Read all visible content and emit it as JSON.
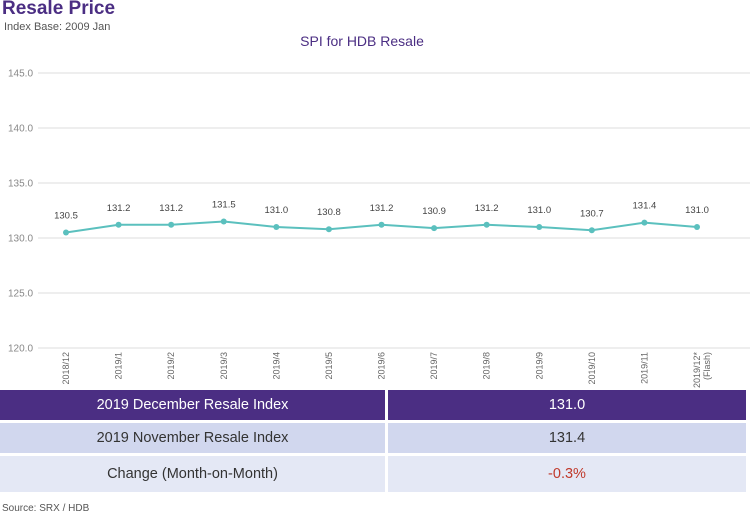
{
  "header": {
    "title": "Resale Price",
    "subtitle": "Index Base: 2009 Jan"
  },
  "chart_data": {
    "type": "line",
    "title": "SPI for HDB Resale",
    "xlabel": "",
    "ylabel": "",
    "x": [
      "2018/12",
      "2019/1",
      "2019/2",
      "2019/3",
      "2019/4",
      "2019/5",
      "2019/6",
      "2019/7",
      "2019/8",
      "2019/9",
      "2019/10",
      "2019/11",
      "2019/12*"
    ],
    "x_last_sublabel": "(Flash)",
    "series": [
      {
        "values": [
          130.5,
          131.2,
          131.2,
          131.5,
          131.0,
          130.8,
          131.2,
          130.9,
          131.2,
          131.0,
          130.7,
          131.4,
          131.0
        ],
        "labels": [
          "130.5",
          "131.2",
          "131.2",
          "131.5",
          "131.0",
          "130.8",
          "131.2",
          "130.9",
          "131.2",
          "131.0",
          "130.7",
          "131.4",
          "131.0"
        ],
        "color": "#5bc0be"
      }
    ],
    "ylim": [
      120.0,
      145.0
    ],
    "yticks": [
      "120.0",
      "125.0",
      "130.0",
      "135.0",
      "140.0",
      "145.0"
    ],
    "grid": true,
    "legend": "none"
  },
  "summary": {
    "rows": [
      {
        "label": "2019 December Resale Index",
        "value": "131.0"
      },
      {
        "label": "2019 November Resale Index",
        "value": "131.4"
      },
      {
        "label": "Change (Month-on-Month)",
        "value": "-0.3%"
      }
    ]
  },
  "source": "Source: SRX / HDB",
  "colors": {
    "accent": "#4b2e83",
    "series": "#5bc0be",
    "negative": "#c0392b"
  }
}
